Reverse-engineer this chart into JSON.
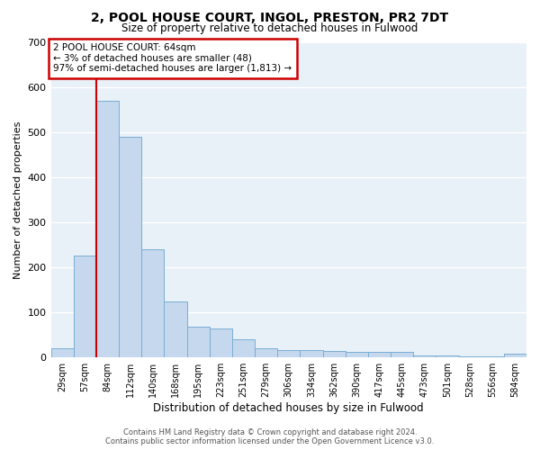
{
  "title": "2, POOL HOUSE COURT, INGOL, PRESTON, PR2 7DT",
  "subtitle": "Size of property relative to detached houses in Fulwood",
  "xlabel": "Distribution of detached houses by size in Fulwood",
  "ylabel": "Number of detached properties",
  "bar_color": "#c5d8ee",
  "bar_edge_color": "#7aaed4",
  "background_color": "#e8f0f8",
  "grid_color": "#ffffff",
  "annotation_box_color": "#cc0000",
  "red_line_color": "#cc0000",
  "categories": [
    "29sqm",
    "57sqm",
    "84sqm",
    "112sqm",
    "140sqm",
    "168sqm",
    "195sqm",
    "223sqm",
    "251sqm",
    "279sqm",
    "306sqm",
    "334sqm",
    "362sqm",
    "390sqm",
    "417sqm",
    "445sqm",
    "473sqm",
    "501sqm",
    "528sqm",
    "556sqm",
    "584sqm"
  ],
  "values": [
    20,
    225,
    570,
    490,
    240,
    125,
    68,
    65,
    40,
    20,
    17,
    17,
    15,
    13,
    12,
    12,
    5,
    4,
    3,
    3,
    8
  ],
  "red_line_x": 1.5,
  "annotation_text": "2 POOL HOUSE COURT: 64sqm\n← 3% of detached houses are smaller (48)\n97% of semi-detached houses are larger (1,813) →",
  "ylim": [
    0,
    700
  ],
  "yticks": [
    0,
    100,
    200,
    300,
    400,
    500,
    600,
    700
  ],
  "footer_line1": "Contains HM Land Registry data © Crown copyright and database right 2024.",
  "footer_line2": "Contains public sector information licensed under the Open Government Licence v3.0."
}
